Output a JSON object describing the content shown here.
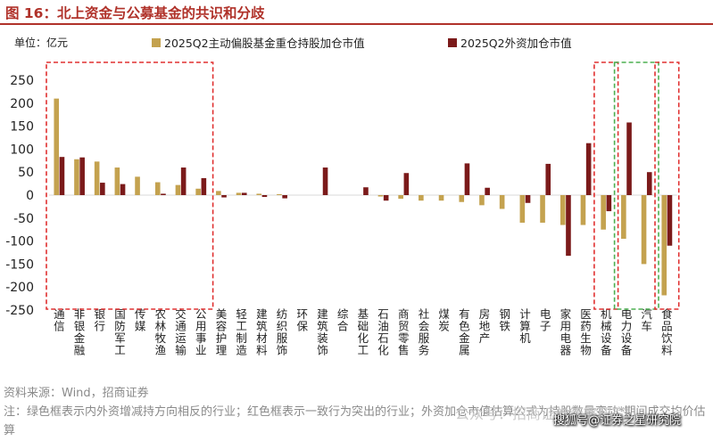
{
  "figure": {
    "title": "图 16：北上资金与公募基金的共识和分歧",
    "source": "资料来源：Wind，招商证券",
    "note": "注：绿色框表示内外资增减持方向相反的行业；红色框表示一致行为突出的行业；外资加仓市值估算公式为持股数量变动*期间成交均价估算",
    "watermark_1": "公众号：招商证券策略研究",
    "watermark_2": "搜狐号@证券之星研究院"
  },
  "colors": {
    "series_fund": "#c4a24f",
    "series_foreign": "#7b1a1a",
    "title_red": "#b0322a",
    "red_box": "#e03030",
    "green_box": "#4caf50",
    "axis_text": "#222222"
  },
  "chart_data": {
    "type": "bar",
    "unit_label": "单位：亿元",
    "categories": [
      "通信",
      "非银金融",
      "银行",
      "国防军工",
      "传媒",
      "农林牧渔",
      "交通运输",
      "公用事业",
      "美容护理",
      "轻工制造",
      "建筑材料",
      "纺织服饰",
      "环保",
      "建筑装饰",
      "综合",
      "基础化工",
      "石油石化",
      "商贸零售",
      "社会服务",
      "煤炭",
      "有色金属",
      "房地产",
      "钢铁",
      "计算机",
      "电子",
      "家用电器",
      "医药生物",
      "机械设备",
      "电力设备",
      "汽车",
      "食品饮料"
    ],
    "series": [
      {
        "name": "2025Q2主动偏股基金重仓持股加仓市值",
        "values": [
          210,
          78,
          73,
          60,
          40,
          28,
          22,
          14,
          9,
          5,
          3,
          2,
          0,
          0,
          0,
          0,
          -3,
          -8,
          -12,
          -12,
          -15,
          -22,
          -30,
          -60,
          -60,
          -65,
          -65,
          -75,
          -95,
          -150,
          -218
        ]
      },
      {
        "name": "2025Q2外资加仓市值",
        "values": [
          83,
          82,
          27,
          24,
          0,
          3,
          60,
          37,
          -5,
          5,
          -4,
          -7,
          0,
          60,
          0,
          17,
          -12,
          48,
          0,
          0,
          69,
          16,
          0,
          -17,
          68,
          -132,
          113,
          -35,
          158,
          50,
          -110
        ]
      }
    ],
    "ylim": [
      -250,
      250
    ],
    "yticks": [
      "250",
      "200",
      "150",
      "100",
      "50",
      "0",
      "-50",
      "-100",
      "-150",
      "-200",
      "-250"
    ],
    "legend_position": "top",
    "grid": false,
    "highlight_boxes": [
      {
        "color": "red",
        "from": "通信",
        "to": "公用事业"
      },
      {
        "color": "red",
        "from": "机械设备",
        "to": "机械设备"
      },
      {
        "color": "green",
        "from": "电力设备",
        "to": "汽车"
      },
      {
        "color": "red",
        "from": "食品饮料",
        "to": "食品饮料"
      }
    ]
  }
}
